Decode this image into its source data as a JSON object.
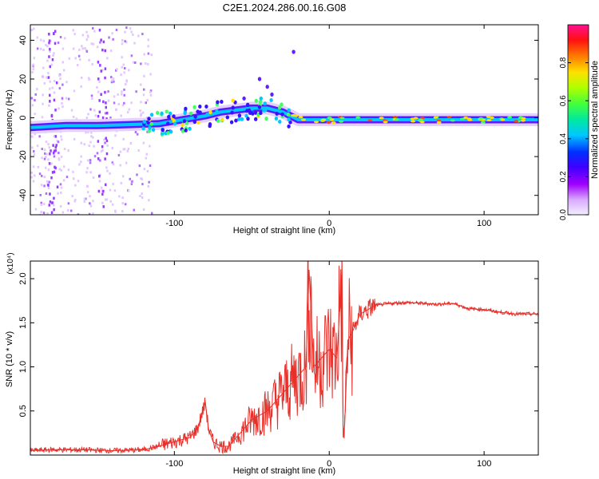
{
  "title": "C2E1.2024.286.00.16.G08",
  "colors": {
    "spectrogram_track": "#00c8ff",
    "snr_line": "#e8302a",
    "axis": "#000000"
  },
  "chart_data": [
    {
      "type": "heatmap",
      "xlabel": "Height of straight line (km)",
      "ylabel": "Frequency (Hz)",
      "xlim": [
        -193,
        135
      ],
      "ylim": [
        -50,
        48
      ],
      "xticks": [
        -100,
        0,
        100
      ],
      "yticks": [
        -40,
        -20,
        0,
        20,
        40
      ],
      "grid": false,
      "track": {
        "x": [
          -193,
          -170,
          -150,
          -130,
          -110,
          -95,
          -80,
          -70,
          -60,
          -50,
          -40,
          -35,
          -30,
          -25,
          -20,
          -15,
          -10,
          0,
          10,
          20,
          40,
          60,
          80,
          100,
          110,
          120,
          135
        ],
        "y": [
          -5,
          -4,
          -4,
          -3.5,
          -3,
          -1,
          1,
          3,
          4,
          5,
          5,
          4,
          3,
          1,
          -1,
          -1,
          -1,
          -1,
          -1,
          -1,
          -1,
          -1,
          -1,
          -1,
          -1,
          -1,
          -1
        ]
      },
      "colorbar": {
        "label": "Normalized spectral amplitude",
        "range": [
          0,
          1
        ],
        "ticks": [
          "0.0",
          "0.2",
          "0.4",
          "0.6",
          "0.8"
        ],
        "tick_values": [
          0,
          0.2,
          0.4,
          0.6,
          0.8
        ]
      }
    },
    {
      "type": "line",
      "xlabel": "Height of straight line (km)",
      "ylabel": "SNR (10 * v/v)",
      "y_multiplier_label": "(x10⁴)",
      "xlim": [
        -193,
        135
      ],
      "ylim": [
        0,
        2.2
      ],
      "xticks": [
        -100,
        0,
        100
      ],
      "yticks": [
        0.5,
        1.0,
        1.5,
        2.0
      ],
      "ytick_labels": [
        "0.5",
        "1.0",
        "1.5",
        "2.0"
      ],
      "grid": false,
      "series": [
        {
          "x": [
            -193,
            -180,
            -160,
            -140,
            -120,
            -110,
            -100,
            -90,
            -85,
            -80,
            -78,
            -75,
            -70,
            -65,
            -60,
            -55,
            -50,
            -45,
            -40,
            -35,
            -30,
            -25,
            -20,
            -15,
            -13,
            -10,
            -5,
            0,
            5,
            8,
            9,
            10,
            12,
            15,
            20,
            25,
            30,
            40,
            50,
            60,
            70,
            80,
            90,
            100,
            110,
            120,
            135
          ],
          "y": [
            0.05,
            0.06,
            0.06,
            0.05,
            0.06,
            0.1,
            0.15,
            0.2,
            0.3,
            0.6,
            0.3,
            0.15,
            0.1,
            0.1,
            0.2,
            0.3,
            0.4,
            0.45,
            0.5,
            0.6,
            0.7,
            0.8,
            0.9,
            1.0,
            2.1,
            1.0,
            1.1,
            1.2,
            1.1,
            2.05,
            0.2,
            0.35,
            1.3,
            1.4,
            1.6,
            1.65,
            1.7,
            1.72,
            1.73,
            1.72,
            1.71,
            1.72,
            1.66,
            1.65,
            1.62,
            1.6,
            1.6
          ]
        }
      ]
    }
  ]
}
